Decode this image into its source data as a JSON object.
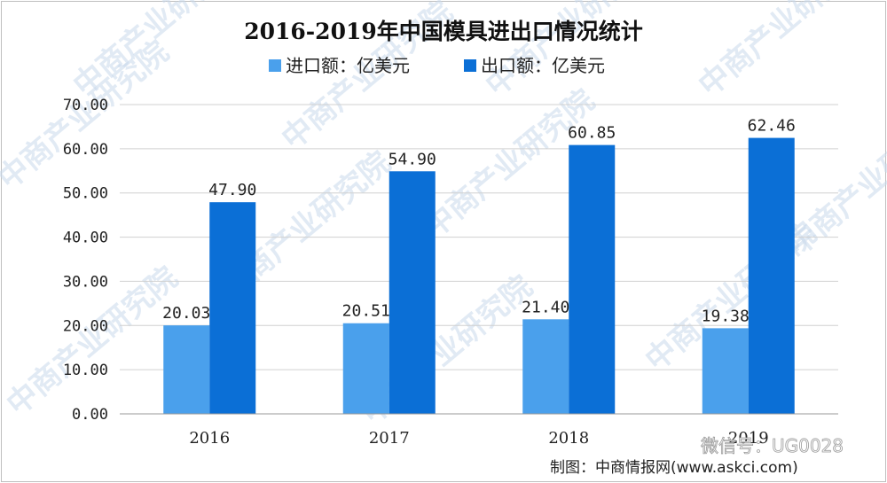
{
  "chart_data": {
    "type": "bar",
    "title": "2016-2019年中国模具进出口情况统计",
    "categories": [
      "2016",
      "2017",
      "2018",
      "2019"
    ],
    "series": [
      {
        "name": "进口额：亿美元",
        "values": [
          20.03,
          20.51,
          21.4,
          19.38
        ],
        "color": "#4aa0ec"
      },
      {
        "name": "出口额：亿美元",
        "values": [
          47.9,
          54.9,
          60.85,
          62.46
        ],
        "color": "#0b6fd6"
      }
    ],
    "y_ticks": [
      "0.00",
      "10.00",
      "20.00",
      "30.00",
      "40.00",
      "50.00",
      "60.00",
      "70.00"
    ],
    "ylim": [
      0,
      70
    ],
    "grid": true,
    "legend_position": "top"
  },
  "watermark": {
    "text": "中商产业研究院"
  },
  "credit": {
    "text": "制图：中商情报网(www.askci.com)"
  },
  "wechat": {
    "text": "微信号：UG0028"
  }
}
